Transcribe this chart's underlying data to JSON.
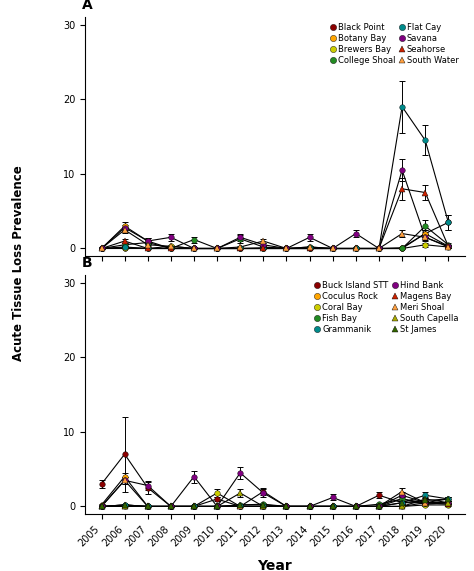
{
  "years": [
    2005,
    2006,
    2007,
    2008,
    2009,
    2010,
    2011,
    2012,
    2013,
    2014,
    2015,
    2016,
    2017,
    2018,
    2019,
    2020
  ],
  "panel_A": {
    "title": "A",
    "series": [
      {
        "name": "Black Point",
        "color": "#8B0000",
        "marker": "o",
        "values": [
          0,
          0.1,
          0,
          0,
          0,
          0,
          0,
          0.1,
          0,
          0,
          0,
          0,
          0,
          0.1,
          2.0,
          3.5
        ],
        "errors": [
          0,
          0.1,
          0,
          0,
          0,
          0,
          0,
          0.1,
          0,
          0,
          0,
          0,
          0,
          0.1,
          0.5,
          1.0
        ]
      },
      {
        "name": "Botany Bay",
        "color": "#FFA500",
        "marker": "o",
        "values": [
          0,
          3.0,
          1.0,
          0,
          0,
          0,
          0,
          0,
          0,
          0,
          0,
          0,
          0,
          0,
          2.0,
          0.3
        ],
        "errors": [
          0,
          0.5,
          0.4,
          0,
          0,
          0,
          0,
          0,
          0,
          0,
          0,
          0,
          0,
          0,
          0.5,
          0.2
        ]
      },
      {
        "name": "Brewers Bay",
        "color": "#CCCC00",
        "marker": "o",
        "values": [
          0,
          0,
          0,
          0.3,
          0,
          0,
          0,
          0,
          0,
          0,
          0,
          0,
          0,
          0,
          0.5,
          0.2
        ],
        "errors": [
          0,
          0,
          0,
          0.2,
          0,
          0,
          0,
          0,
          0,
          0,
          0,
          0,
          0,
          0,
          0.3,
          0.1
        ]
      },
      {
        "name": "College Shoal",
        "color": "#228B22",
        "marker": "o",
        "values": [
          0,
          0.5,
          0.8,
          0,
          1.2,
          0,
          1.3,
          0.2,
          0,
          0.2,
          0,
          0,
          0,
          0,
          3.0,
          0.5
        ],
        "errors": [
          0,
          0.2,
          0.3,
          0,
          0.4,
          0,
          0.5,
          0.1,
          0,
          0.1,
          0,
          0,
          0,
          0,
          0.8,
          0.3
        ]
      },
      {
        "name": "Flat Cay",
        "color": "#008B8B",
        "marker": "o",
        "values": [
          0,
          0.2,
          0,
          0,
          0,
          0,
          0,
          0,
          0,
          0,
          0,
          0,
          0,
          19.0,
          14.5,
          3.5
        ],
        "errors": [
          0,
          0.1,
          0,
          0,
          0,
          0,
          0,
          0,
          0,
          0,
          0,
          0,
          0,
          3.5,
          2.0,
          1.0
        ]
      },
      {
        "name": "Savana",
        "color": "#800080",
        "marker": "o",
        "values": [
          0,
          2.8,
          1.0,
          1.5,
          0,
          0,
          1.5,
          0.5,
          0,
          1.5,
          0,
          2.0,
          0,
          10.5,
          1.5,
          0.3
        ],
        "errors": [
          0,
          0.3,
          0.4,
          0.5,
          0,
          0,
          0.5,
          0.2,
          0,
          0.5,
          0,
          0.5,
          0,
          1.5,
          0.5,
          0.2
        ]
      },
      {
        "name": "Seahorse",
        "color": "#CC2200",
        "marker": "^",
        "values": [
          0,
          1.0,
          0,
          0,
          0,
          0,
          0,
          0,
          0,
          0,
          0,
          0,
          0,
          8.0,
          7.5,
          0.3
        ],
        "errors": [
          0,
          0.3,
          0,
          0,
          0,
          0,
          0,
          0,
          0,
          0,
          0,
          0,
          0,
          1.5,
          1.0,
          0.2
        ]
      },
      {
        "name": "South Water",
        "color": "#FFA040",
        "marker": "^",
        "values": [
          0,
          2.5,
          0.5,
          0.3,
          0,
          0,
          0.2,
          1.0,
          0,
          0.2,
          0,
          0,
          0,
          2.0,
          1.5,
          0.2
        ],
        "errors": [
          0,
          0.4,
          0.2,
          0.1,
          0,
          0,
          0.1,
          0.3,
          0,
          0.1,
          0,
          0,
          0,
          0.5,
          0.4,
          0.1
        ]
      }
    ],
    "ylim": [
      -1,
      31
    ],
    "yticks": [
      0,
      10,
      20,
      30
    ]
  },
  "panel_B": {
    "title": "B",
    "series": [
      {
        "name": "Buck Island STT",
        "color": "#8B0000",
        "marker": "o",
        "values": [
          3.0,
          7.0,
          2.5,
          0,
          0,
          1.0,
          0,
          2.0,
          0,
          0,
          0,
          0,
          1.5,
          0.5,
          0.5,
          0.5
        ],
        "errors": [
          0.5,
          5.0,
          0.8,
          0,
          0,
          0.3,
          0,
          0.5,
          0,
          0,
          0,
          0,
          0.4,
          0.2,
          0.2,
          0.2
        ]
      },
      {
        "name": "Coculus Rock",
        "color": "#FFA500",
        "marker": "o",
        "values": [
          0.2,
          4.0,
          0,
          0,
          0,
          0,
          0,
          0,
          0,
          0,
          0,
          0,
          0,
          1.0,
          0.3,
          0.5
        ],
        "errors": [
          0.1,
          0.5,
          0,
          0,
          0,
          0,
          0,
          0,
          0,
          0,
          0,
          0,
          0,
          0.3,
          0.1,
          0.2
        ]
      },
      {
        "name": "Coral Bay",
        "color": "#CCCC00",
        "marker": "o",
        "values": [
          0,
          0,
          0,
          0,
          0,
          1.8,
          0,
          0,
          0,
          0,
          0,
          0,
          0,
          0,
          0.2,
          0.2
        ],
        "errors": [
          0,
          0,
          0,
          0,
          0,
          0.5,
          0,
          0,
          0,
          0,
          0,
          0,
          0,
          0,
          0.1,
          0.1
        ]
      },
      {
        "name": "Fish Bay",
        "color": "#228B22",
        "marker": "o",
        "values": [
          0,
          0.2,
          0,
          0,
          0,
          0,
          0.2,
          0.3,
          0,
          0,
          0,
          0,
          0.3,
          1.0,
          0.5,
          1.0
        ],
        "errors": [
          0,
          0.1,
          0,
          0,
          0,
          0,
          0.1,
          0.1,
          0,
          0,
          0,
          0,
          0.1,
          0.3,
          0.2,
          0.3
        ]
      },
      {
        "name": "Grammanik",
        "color": "#008B8B",
        "marker": "o",
        "values": [
          0,
          0.2,
          0,
          0,
          0,
          0,
          0,
          0,
          0,
          0,
          0,
          0,
          0,
          0.5,
          1.5,
          1.0
        ],
        "errors": [
          0,
          0.1,
          0,
          0,
          0,
          0,
          0,
          0,
          0,
          0,
          0,
          0,
          0,
          0.2,
          0.4,
          0.3
        ]
      },
      {
        "name": "Hind Bank",
        "color": "#800080",
        "marker": "o",
        "values": [
          0,
          3.5,
          2.8,
          0,
          4.0,
          0,
          4.5,
          1.8,
          0,
          0,
          1.2,
          0,
          0,
          1.5,
          0.5,
          0.5
        ],
        "errors": [
          0,
          0.5,
          0.6,
          0,
          0.8,
          0,
          0.8,
          0.5,
          0,
          0,
          0.4,
          0,
          0,
          0.5,
          0.2,
          0.2
        ]
      },
      {
        "name": "Magens Bay",
        "color": "#CC2200",
        "marker": "^",
        "values": [
          0,
          0,
          0,
          0,
          0,
          0,
          0,
          0,
          0,
          0,
          0,
          0,
          0,
          0,
          0.5,
          0.3
        ],
        "errors": [
          0,
          0,
          0,
          0,
          0,
          0,
          0,
          0,
          0,
          0,
          0,
          0,
          0,
          0,
          0.2,
          0.1
        ]
      },
      {
        "name": "Meri Shoal",
        "color": "#FFA040",
        "marker": "^",
        "values": [
          0,
          3.5,
          0,
          0,
          0,
          0,
          0,
          0,
          0,
          0,
          0,
          0,
          0,
          2.0,
          0.5,
          0.5
        ],
        "errors": [
          0,
          0.5,
          0,
          0,
          0,
          0,
          0,
          0,
          0,
          0,
          0,
          0,
          0,
          0.5,
          0.2,
          0.2
        ]
      },
      {
        "name": "South Capella",
        "color": "#AAAA00",
        "marker": "^",
        "values": [
          0,
          0,
          0,
          0,
          0,
          0,
          1.8,
          0,
          0,
          0,
          0,
          0,
          0,
          0,
          1.0,
          0.5
        ],
        "errors": [
          0,
          0,
          0,
          0,
          0,
          0,
          0.5,
          0,
          0,
          0,
          0,
          0,
          0,
          0,
          0.3,
          0.2
        ]
      },
      {
        "name": "St James",
        "color": "#336600",
        "marker": "^",
        "values": [
          0,
          0.2,
          0,
          0,
          0,
          0,
          0.2,
          0.2,
          0,
          0,
          0,
          0,
          0,
          0.5,
          0.8,
          1.0
        ],
        "errors": [
          0,
          0.1,
          0,
          0,
          0,
          0,
          0.1,
          0.1,
          0,
          0,
          0,
          0,
          0,
          0.2,
          0.3,
          0.3
        ]
      }
    ],
    "ylim": [
      -1,
      31
    ],
    "yticks": [
      0,
      10,
      20,
      30
    ]
  },
  "ylabel": "Acute Tissue Loss Prevalence",
  "xlabel": "Year",
  "bg_color": "#ffffff",
  "legend_fontsize": 6.0,
  "tick_fontsize": 7,
  "marker_size": 4,
  "line_width": 0.8
}
